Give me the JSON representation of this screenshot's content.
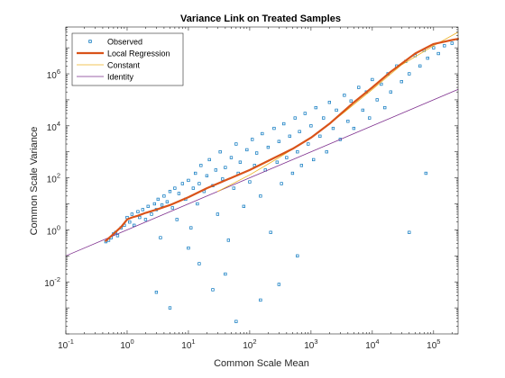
{
  "chart_data": {
    "type": "scatter",
    "title": "Variance Link on Treated Samples",
    "xlabel": "Common Scale Mean",
    "ylabel": "Common Scale Variance",
    "xscale": "log",
    "yscale": "log",
    "xlim": [
      0.1,
      251188.6
    ],
    "ylim": [
      0.0001,
      63095734
    ],
    "grid": false,
    "legend_position": "top-left",
    "x_ticks": [
      {
        "value": 0.1,
        "base": "10",
        "exp": "-1"
      },
      {
        "value": 1,
        "base": "10",
        "exp": "0"
      },
      {
        "value": 10,
        "base": "10",
        "exp": "1"
      },
      {
        "value": 100,
        "base": "10",
        "exp": "2"
      },
      {
        "value": 1000,
        "base": "10",
        "exp": "3"
      },
      {
        "value": 10000,
        "base": "10",
        "exp": "4"
      },
      {
        "value": 100000,
        "base": "10",
        "exp": "5"
      }
    ],
    "y_ticks": [
      {
        "value": 0.01,
        "base": "10",
        "exp": "-2"
      },
      {
        "value": 1,
        "base": "10",
        "exp": "0"
      },
      {
        "value": 100,
        "base": "10",
        "exp": "2"
      },
      {
        "value": 10000,
        "base": "10",
        "exp": "4"
      },
      {
        "value": 1000000,
        "base": "10",
        "exp": "6"
      }
    ],
    "series": [
      {
        "name": "Observed",
        "kind": "markers",
        "color": "#0072bd",
        "points": [
          [
            0.45,
            0.35
          ],
          [
            0.5,
            0.4
          ],
          [
            0.55,
            0.5
          ],
          [
            0.6,
            0.7
          ],
          [
            0.65,
            0.8
          ],
          [
            0.7,
            0.6
          ],
          [
            0.8,
            1.2
          ],
          [
            0.9,
            1.5
          ],
          [
            1.0,
            3.0
          ],
          [
            1.1,
            2.0
          ],
          [
            1.2,
            4.0
          ],
          [
            1.3,
            1.5
          ],
          [
            1.5,
            5.0
          ],
          [
            1.6,
            3.0
          ],
          [
            1.8,
            6.0
          ],
          [
            2.0,
            2.5
          ],
          [
            2.2,
            8.0
          ],
          [
            2.5,
            4.0
          ],
          [
            2.8,
            10.0
          ],
          [
            3.0,
            6.0
          ],
          [
            3.2,
            15.0
          ],
          [
            3.5,
            0.5
          ],
          [
            3.7,
            9.0
          ],
          [
            4.0,
            20.0
          ],
          [
            4.5,
            12.0
          ],
          [
            5.0,
            30.0
          ],
          [
            5.5,
            7.0
          ],
          [
            6.0,
            40.0
          ],
          [
            6.5,
            2.5
          ],
          [
            7.0,
            25.0
          ],
          [
            8.0,
            60.0
          ],
          [
            9.0,
            15.0
          ],
          [
            10.0,
            80.0
          ],
          [
            11.0,
            1.2
          ],
          [
            12.0,
            40.0
          ],
          [
            13.0,
            150.0
          ],
          [
            14.0,
            10.0
          ],
          [
            15.0,
            60.0
          ],
          [
            16.0,
            300.0
          ],
          [
            18.0,
            30.0
          ],
          [
            20.0,
            120.0
          ],
          [
            22.0,
            500.0
          ],
          [
            25.0,
            50.0
          ],
          [
            28.0,
            200.0
          ],
          [
            30.0,
            4.0
          ],
          [
            33.0,
            1000.0
          ],
          [
            36.0,
            90.0
          ],
          [
            40.0,
            250.0
          ],
          [
            45.0,
            0.4
          ],
          [
            50.0,
            600.0
          ],
          [
            55.0,
            40.0
          ],
          [
            60.0,
            2000.0
          ],
          [
            65.0,
            150.0
          ],
          [
            70.0,
            400.0
          ],
          [
            80.0,
            8.0
          ],
          [
            90.0,
            1200.0
          ],
          [
            100.0,
            70.0
          ],
          [
            110.0,
            3000.0
          ],
          [
            120.0,
            300.0
          ],
          [
            130.0,
            900.0
          ],
          [
            150.0,
            20.0
          ],
          [
            160.0,
            5000.0
          ],
          [
            180.0,
            200.0
          ],
          [
            200.0,
            1500.0
          ],
          [
            220.0,
            0.8
          ],
          [
            250.0,
            8000.0
          ],
          [
            280.0,
            400.0
          ],
          [
            300.0,
            2500.0
          ],
          [
            330.0,
            60.0
          ],
          [
            360.0,
            12000.0
          ],
          [
            400.0,
            600.0
          ],
          [
            450.0,
            4000.0
          ],
          [
            500.0,
            150.0
          ],
          [
            550.0,
            20000.0
          ],
          [
            600.0,
            1000.0
          ],
          [
            650.0,
            6000.0
          ],
          [
            700.0,
            300.0
          ],
          [
            800.0,
            30000.0
          ],
          [
            900.0,
            2000.0
          ],
          [
            1000.0,
            10000.0
          ],
          [
            1100.0,
            500.0
          ],
          [
            1200.0,
            50000.0
          ],
          [
            1400.0,
            4000.0
          ],
          [
            1600.0,
            20000.0
          ],
          [
            1800.0,
            1000.0
          ],
          [
            2000.0,
            80000.0
          ],
          [
            2300.0,
            8000.0
          ],
          [
            2600.0,
            40000.0
          ],
          [
            3000.0,
            3000.0
          ],
          [
            3500.0,
            150000.0
          ],
          [
            4000.0,
            15000.0
          ],
          [
            4500.0,
            90000.0
          ],
          [
            5000.0,
            8000.0
          ],
          [
            6000.0,
            300000.0
          ],
          [
            7000.0,
            40000.0
          ],
          [
            8000.0,
            200000.0
          ],
          [
            9000.0,
            20000.0
          ],
          [
            10000.0,
            600000.0
          ],
          [
            12000.0,
            100000.0
          ],
          [
            14000.0,
            400000.0
          ],
          [
            16000.0,
            50000.0
          ],
          [
            18000.0,
            1000000.0
          ],
          [
            20000.0,
            200000.0
          ],
          [
            25000.0,
            2000000.0
          ],
          [
            30000.0,
            500000.0
          ],
          [
            35000.0,
            3000000.0
          ],
          [
            40000.0,
            1000000.0
          ],
          [
            50000.0,
            5000000.0
          ],
          [
            60000.0,
            2000000.0
          ],
          [
            70000.0,
            8000000.0
          ],
          [
            80000.0,
            4000000.0
          ],
          [
            100000.0,
            10000000.0
          ],
          [
            120000.0,
            6000000.0
          ],
          [
            150000.0,
            12000000.0
          ],
          [
            200000.0,
            15000000.0
          ],
          [
            75000.0,
            150.0
          ],
          [
            40000.0,
            0.8
          ],
          [
            3.0,
            0.004
          ],
          [
            5.0,
            0.001
          ],
          [
            60.0,
            0.0003
          ],
          [
            25.0,
            0.005
          ],
          [
            150.0,
            0.002
          ],
          [
            40.0,
            0.02
          ],
          [
            300.0,
            0.008
          ],
          [
            15.0,
            0.05
          ],
          [
            10.0,
            0.2
          ],
          [
            600.0,
            0.1
          ]
        ]
      },
      {
        "name": "Local Regression",
        "kind": "line",
        "color": "#d95319",
        "points": [
          [
            0.45,
            0.38
          ],
          [
            0.6,
            0.7
          ],
          [
            0.8,
            1.3
          ],
          [
            1.0,
            2.5
          ],
          [
            1.2,
            3.0
          ],
          [
            1.5,
            3.5
          ],
          [
            2.0,
            4.5
          ],
          [
            3.0,
            6.0
          ],
          [
            5.0,
            9.0
          ],
          [
            10.0,
            18.0
          ],
          [
            20.0,
            40.0
          ],
          [
            50.0,
            100.0
          ],
          [
            100.0,
            200.0
          ],
          [
            200.0,
            450.0
          ],
          [
            500.0,
            1300.0
          ],
          [
            1000.0,
            3500.0
          ],
          [
            2000.0,
            12000.0
          ],
          [
            5000.0,
            80000.0
          ],
          [
            10000.0,
            300000.0
          ],
          [
            20000.0,
            1200000.0
          ],
          [
            50000.0,
            6000000.0
          ],
          [
            100000.0,
            14000000.0
          ],
          [
            200000.0,
            20000000.0
          ],
          [
            250000.0,
            22000000.0
          ]
        ]
      },
      {
        "name": "Constant",
        "kind": "line",
        "color": "#edb120",
        "points": [
          [
            30.0,
            30.0
          ],
          [
            100.0,
            130.0
          ],
          [
            300.0,
            600.0
          ],
          [
            1000.0,
            3500.0
          ],
          [
            3000.0,
            25000.0
          ],
          [
            10000.0,
            250000.0
          ],
          [
            30000.0,
            2200000.0
          ],
          [
            100000.0,
            12000000.0
          ],
          [
            250000.0,
            40000000.0
          ]
        ]
      },
      {
        "name": "Identity",
        "kind": "line",
        "color": "#7e2f8e",
        "points": [
          [
            0.1,
            0.1
          ],
          [
            250000.0,
            250000.0
          ]
        ]
      }
    ]
  }
}
